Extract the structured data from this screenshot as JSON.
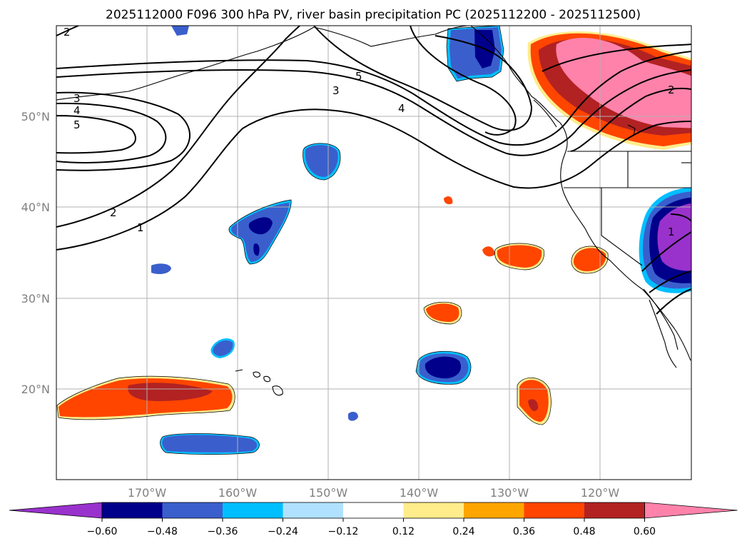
{
  "title": "2025112000 F096 300 hPa PV, river basin precipitation PC (2025112200 - 2025112500)",
  "axes": {
    "lon_labels": [
      "170°W",
      "160°W",
      "150°W",
      "140°W",
      "130°W",
      "120°W"
    ],
    "lat_labels": [
      "50°N",
      "40°N",
      "30°N",
      "20°N"
    ]
  },
  "colorbar": {
    "ticks": [
      "−0.60",
      "−0.48",
      "−0.36",
      "−0.24",
      "−0.12",
      "0.12",
      "0.24",
      "0.36",
      "0.48",
      "0.60"
    ],
    "colors": [
      "#9932cc",
      "#00008b",
      "#3a5fcd",
      "#00bfff",
      "#b0e2ff",
      "#ffffff",
      "#ffec8b",
      "#ffa500",
      "#ff4500",
      "#b22222",
      "#ff82ab"
    ]
  },
  "contour_labels": {
    "pv1_west": "1",
    "pv2_west": "2",
    "pv2_nw": "2",
    "pv3_west": "3",
    "pv4_west": "4",
    "pv5_west": "5",
    "pv3_mid": "3",
    "pv4_mid": "4",
    "pv5_mid": "5",
    "pv2_ne": "2",
    "pv1_se": "1"
  }
}
